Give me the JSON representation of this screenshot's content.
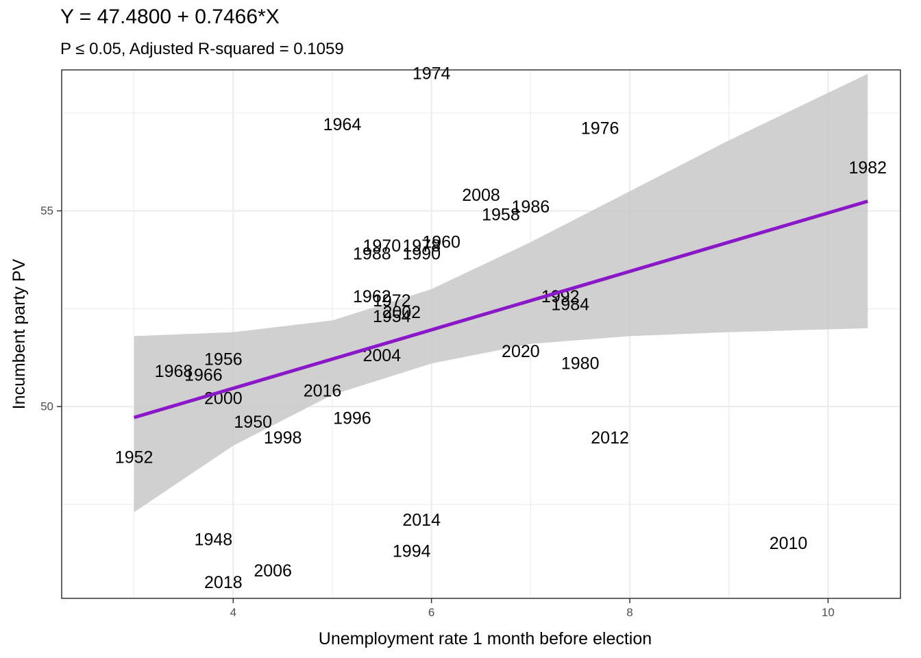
{
  "title": "Y = 47.4800 + 0.7466*X",
  "subtitle": "P ≤ 0.05, Adjusted R-squared = 0.1059",
  "colors": {
    "fit_line": "#8b18c8",
    "ribbon": "#c8c8c8",
    "grid": "#ebebeb",
    "border": "#333333"
  },
  "chart_data": {
    "type": "scatter",
    "title": "Y = 47.4800 + 0.7466*X",
    "subtitle": "P ≤ 0.05, Adjusted R-squared = 0.1059",
    "xlabel": "Unemployment rate 1 month before election",
    "ylabel": "Incumbent party PV",
    "xlim": [
      2.27,
      10.73
    ],
    "ylim": [
      45.1,
      58.6
    ],
    "x_ticks": [
      4,
      6,
      8,
      10
    ],
    "y_ticks": [
      50,
      55
    ],
    "grid": true,
    "legend": "none",
    "fit": {
      "intercept": 47.48,
      "slope": 0.7466,
      "x_range": [
        3.0,
        10.4
      ],
      "confidence_band": [
        {
          "x": 3.0,
          "lower": 47.3,
          "upper": 51.8
        },
        {
          "x": 4.0,
          "lower": 49.0,
          "upper": 51.9
        },
        {
          "x": 5.0,
          "lower": 50.3,
          "upper": 52.2
        },
        {
          "x": 6.0,
          "lower": 51.1,
          "upper": 53.0
        },
        {
          "x": 7.0,
          "lower": 51.6,
          "upper": 54.2
        },
        {
          "x": 8.0,
          "lower": 51.8,
          "upper": 55.5
        },
        {
          "x": 9.0,
          "lower": 51.9,
          "upper": 56.8
        },
        {
          "x": 10.4,
          "lower": 52.0,
          "upper": 58.5
        }
      ]
    },
    "points": [
      {
        "label": "1948",
        "x": 3.8,
        "y": 46.6
      },
      {
        "label": "1950",
        "x": 4.2,
        "y": 49.6
      },
      {
        "label": "1952",
        "x": 3.0,
        "y": 48.7
      },
      {
        "label": "1954",
        "x": 5.6,
        "y": 52.3
      },
      {
        "label": "1956",
        "x": 3.9,
        "y": 51.2
      },
      {
        "label": "1958",
        "x": 6.7,
        "y": 54.9
      },
      {
        "label": "1960",
        "x": 6.1,
        "y": 54.2
      },
      {
        "label": "1962",
        "x": 5.4,
        "y": 52.8
      },
      {
        "label": "1964",
        "x": 5.1,
        "y": 57.2
      },
      {
        "label": "1966",
        "x": 3.7,
        "y": 50.8
      },
      {
        "label": "1968",
        "x": 3.4,
        "y": 50.9
      },
      {
        "label": "1970",
        "x": 5.5,
        "y": 54.1
      },
      {
        "label": "1972",
        "x": 5.6,
        "y": 52.7
      },
      {
        "label": "1974",
        "x": 6.0,
        "y": 58.5
      },
      {
        "label": "1976",
        "x": 7.7,
        "y": 57.1
      },
      {
        "label": "1978",
        "x": 5.9,
        "y": 54.1
      },
      {
        "label": "1980",
        "x": 7.5,
        "y": 51.1
      },
      {
        "label": "1982",
        "x": 10.4,
        "y": 56.1
      },
      {
        "label": "1984",
        "x": 7.4,
        "y": 52.6
      },
      {
        "label": "1986",
        "x": 7.0,
        "y": 55.1
      },
      {
        "label": "1988",
        "x": 5.4,
        "y": 53.9
      },
      {
        "label": "1990",
        "x": 5.9,
        "y": 53.9
      },
      {
        "label": "1992",
        "x": 7.3,
        "y": 52.8
      },
      {
        "label": "1994",
        "x": 5.8,
        "y": 46.3
      },
      {
        "label": "1996",
        "x": 5.2,
        "y": 49.7
      },
      {
        "label": "1998",
        "x": 4.5,
        "y": 49.2
      },
      {
        "label": "2000",
        "x": 3.9,
        "y": 50.2
      },
      {
        "label": "2002",
        "x": 5.7,
        "y": 52.4
      },
      {
        "label": "2004",
        "x": 5.5,
        "y": 51.3
      },
      {
        "label": "2006",
        "x": 4.4,
        "y": 45.8
      },
      {
        "label": "2008",
        "x": 6.5,
        "y": 55.4
      },
      {
        "label": "2010",
        "x": 9.6,
        "y": 46.5
      },
      {
        "label": "2012",
        "x": 7.8,
        "y": 49.2
      },
      {
        "label": "2014",
        "x": 5.9,
        "y": 47.1
      },
      {
        "label": "2016",
        "x": 4.9,
        "y": 50.4
      },
      {
        "label": "2018",
        "x": 3.9,
        "y": 45.5
      },
      {
        "label": "2020",
        "x": 6.9,
        "y": 51.4
      }
    ]
  }
}
